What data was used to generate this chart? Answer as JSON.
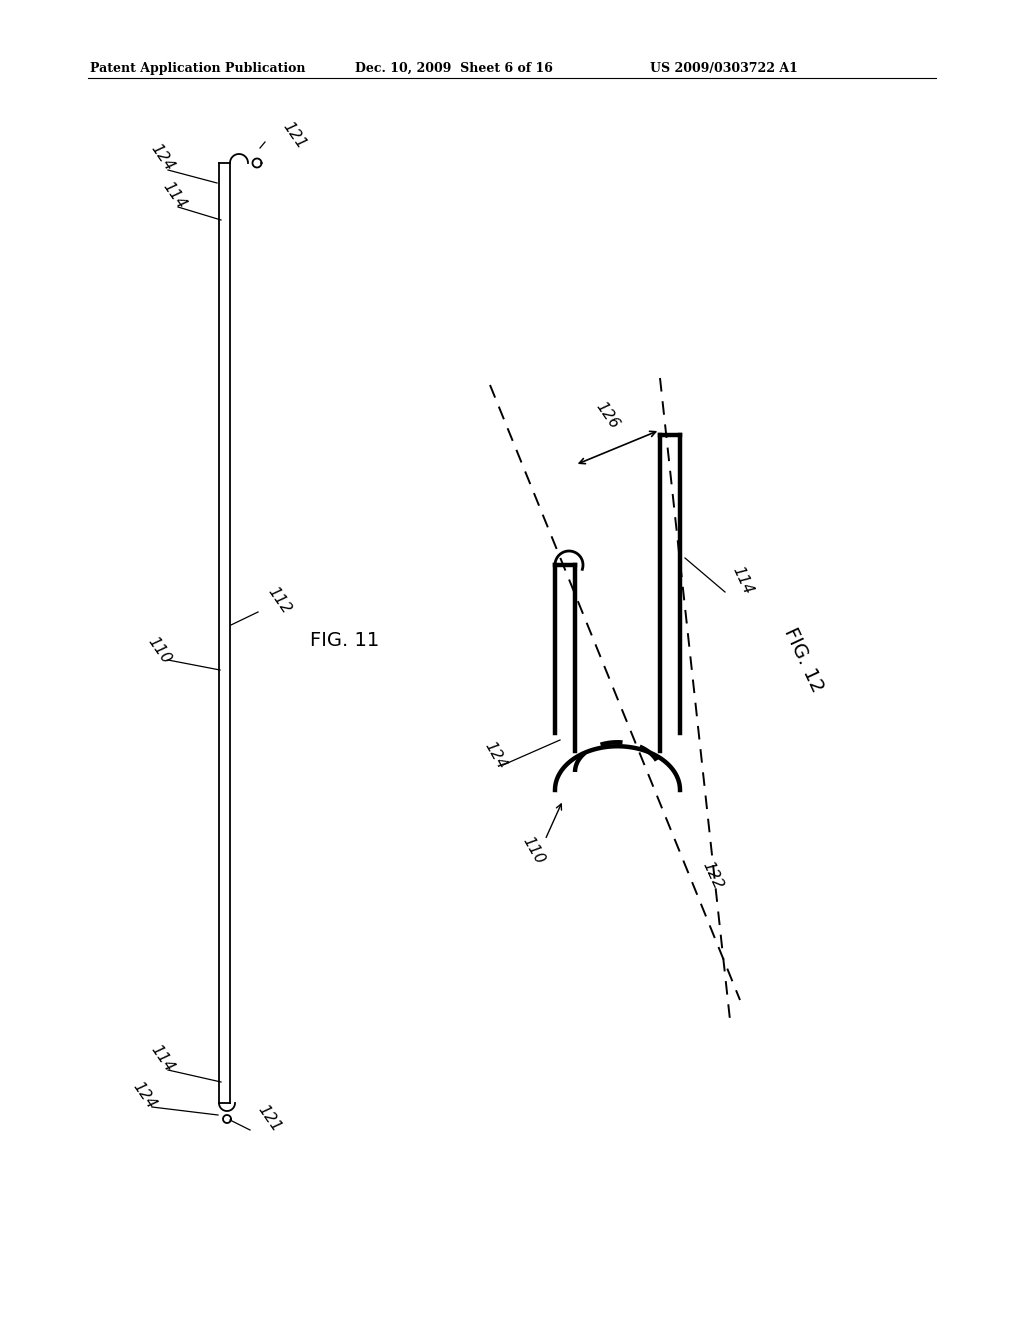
{
  "bg_color": "#ffffff",
  "header_left": "Patent Application Publication",
  "header_mid": "Dec. 10, 2009  Sheet 6 of 16",
  "header_right": "US 2009/0303722 A1",
  "fig11_label": "FIG. 11",
  "fig12_label": "FIG. 12"
}
